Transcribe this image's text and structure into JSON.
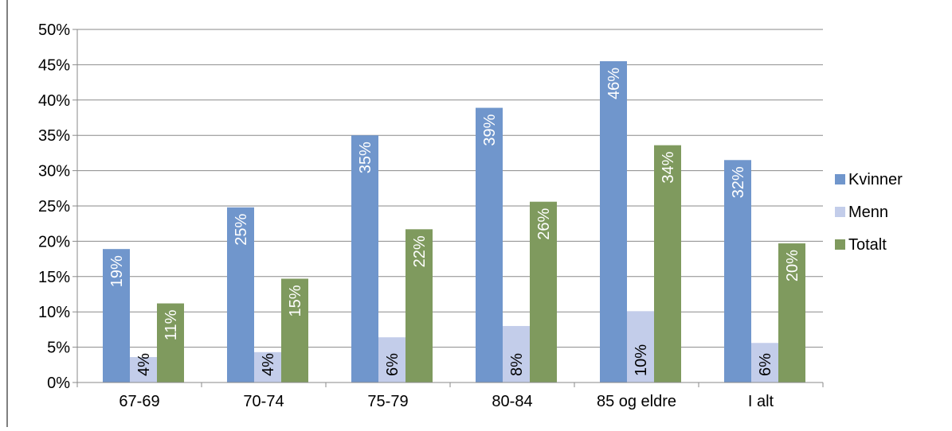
{
  "chart_data": {
    "type": "bar",
    "title": "",
    "xlabel": "",
    "ylabel": "",
    "ylim": [
      0,
      50
    ],
    "y_ticks": [
      "0%",
      "5%",
      "10%",
      "15%",
      "20%",
      "25%",
      "30%",
      "35%",
      "40%",
      "45%",
      "50%"
    ],
    "grid": true,
    "legend_position": "right",
    "categories": [
      "67-69",
      "70-74",
      "75-79",
      "80-84",
      "85 og eldre",
      "I alt"
    ],
    "series": [
      {
        "name": "Kvinner",
        "color": "#7096cc",
        "values": [
          18.9,
          24.8,
          35.0,
          38.9,
          45.5,
          31.5
        ],
        "labels": [
          "19%",
          "25%",
          "35%",
          "39%",
          "46%",
          "32%"
        ]
      },
      {
        "name": "Menn",
        "color": "#c3cdea",
        "values": [
          3.6,
          4.3,
          6.4,
          8.0,
          10.1,
          5.6
        ],
        "labels": [
          "4%",
          "4%",
          "6%",
          "8%",
          "10%",
          "6%"
        ]
      },
      {
        "name": "Totalt",
        "color": "#7f9a5e",
        "values": [
          11.2,
          14.7,
          21.7,
          25.6,
          33.6,
          19.7
        ],
        "labels": [
          "11%",
          "15%",
          "22%",
          "26%",
          "34%",
          "20%"
        ]
      }
    ]
  }
}
